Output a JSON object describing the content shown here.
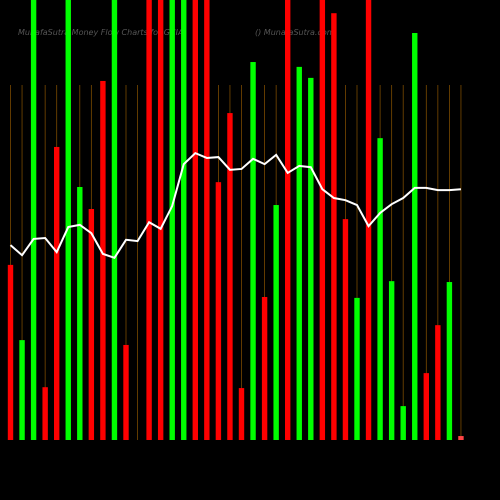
{
  "chart_data": {
    "type": "bar-line",
    "title": "MunafaSutra Money Flow Charts for GCIA",
    "subtitle": "() MunafaSutra.com",
    "categories": [
      null,
      null,
      null,
      null,
      null,
      null,
      null,
      null,
      null,
      null,
      null,
      null,
      null,
      null,
      null,
      null,
      null,
      null,
      null,
      null,
      null,
      null,
      null,
      null,
      null,
      null,
      null,
      null,
      null,
      null,
      null,
      null,
      null,
      null,
      null,
      null,
      null,
      null,
      null,
      null
    ],
    "ylim": [
      0,
      100
    ],
    "bars": {
      "values": [
        39.8,
        22.7,
        100,
        12.0,
        66.6,
        100,
        57.5,
        52.5,
        81.6,
        100,
        21.6,
        0,
        100,
        100,
        100,
        100,
        100,
        100,
        58.6,
        74.3,
        11.8,
        85.9,
        32.5,
        53.4,
        100,
        84.8,
        82.3,
        100,
        97.0,
        50.2,
        32.3,
        100,
        68.6,
        36.1,
        7.7,
        92.5,
        15.2,
        26.1,
        35.9,
        0.9
      ],
      "colors": [
        "#ff0000",
        "#00ff00",
        "#00ff00",
        "#ff0000",
        "#ff0000",
        "#00ff00",
        "#00ff00",
        "#ff0000",
        "#ff0000",
        "#00ff00",
        "#ff0000",
        "#ff0000",
        "#ff0000",
        "#ff0000",
        "#00ff00",
        "#00ff00",
        "#ff0000",
        "#ff0000",
        "#ff0000",
        "#ff0000",
        "#ff0000",
        "#00ff00",
        "#ff0000",
        "#00ff00",
        "#ff0000",
        "#00ff00",
        "#00ff00",
        "#ff0000",
        "#ff0000",
        "#ff0000",
        "#00ff00",
        "#ff0000",
        "#00ff00",
        "#00ff00",
        "#00ff00",
        "#00ff00",
        "#ff0000",
        "#ff0000",
        "#00ff00",
        "#ff4444"
      ]
    },
    "line": {
      "color": "#ffffff",
      "values": [
        44.3,
        42.0,
        45.7,
        45.9,
        42.7,
        48.4,
        48.9,
        47.0,
        42.3,
        41.4,
        45.5,
        45.2,
        49.5,
        48.0,
        53.2,
        62.7,
        65.2,
        64.1,
        64.3,
        61.4,
        61.6,
        63.9,
        62.7,
        64.8,
        60.7,
        62.3,
        62.0,
        57.0,
        55.0,
        54.5,
        53.4,
        48.6,
        51.6,
        53.6,
        55.0,
        57.3,
        57.3,
        56.8,
        56.8,
        57.0
      ]
    }
  }
}
